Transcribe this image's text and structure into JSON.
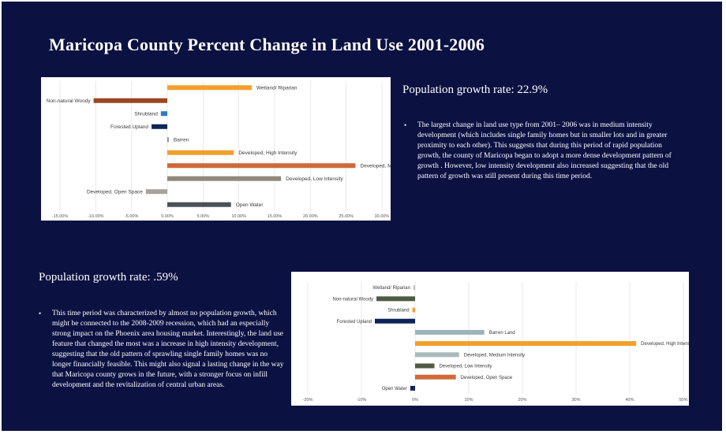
{
  "slide": {
    "title": "Maricopa County Percent Change in Land Use 2001-2006",
    "bg_color": "#0b1141"
  },
  "section1": {
    "growth_label": "Population growth rate: 22.9%",
    "bullet_glyph": "•",
    "bullet": "The largest change in land use type from 2001– 2006 was in medium intensity development (which includes single family homes but in smaller lots and in greater proximity to each other). This suggests that during this period of rapid population growth, the county of Maricopa began to adopt a more dense development pattern of growth . However, low intensity development also increased suggesting that the old pattern of growth  was still present during this time period."
  },
  "section2": {
    "growth_label": "Population growth rate: .59%",
    "bullet_glyph": "•",
    "bullet": "This time period was characterized by almost no population growth, which might be connected to the 2008-2009 recession, which had an especially strong impact on the Phoenix area housing market. Interestingly, the land use feature that changed the most was a increase in high intensity development, suggesting that the old pattern of sprawling single family homes was no longer financially feasible. This might also signal a lasting change in the way that Maricopa county grows in the future,  with a stronger focus on infill development and the revitalization of central urban areas."
  },
  "chart_data": [
    {
      "type": "bar",
      "orientation": "horizontal",
      "title": "",
      "xlabel": "",
      "ylabel": "",
      "xlim": [
        -15,
        30
      ],
      "grid": true,
      "ticks": [
        -15,
        -10,
        -5,
        0,
        5,
        10,
        15,
        20,
        25,
        30
      ],
      "tick_labels": [
        "-15.00%",
        "-10.00%",
        "-5.00%",
        "0.00%",
        "5.00%",
        "10.00%",
        "15.00%",
        "20.00%",
        "25.00%",
        "30.00%"
      ],
      "categories": [
        "Wetland/ Riparian",
        "Non-natural Woody",
        "Shrubland",
        "Forested Upland",
        "Barren",
        "Developed, High Intensity",
        "Developed, Medium Intensity",
        "Developed, Low Intensity",
        "Developed, Open Space",
        "Open Water"
      ],
      "values": [
        11.8,
        -10.3,
        -0.9,
        -2.2,
        0.2,
        9.3,
        26.3,
        15.9,
        -3.0,
        8.9
      ],
      "colors": [
        "#f2a02d",
        "#9c4722",
        "#2f7bbd",
        "#0f2557",
        "#8a8a8a",
        "#f2a02d",
        "#d0693a",
        "#8f8a7c",
        "#a8a39a",
        "#4a5258"
      ]
    },
    {
      "type": "bar",
      "orientation": "horizontal",
      "title": "",
      "xlabel": "",
      "ylabel": "",
      "xlim": [
        -20,
        50
      ],
      "grid": true,
      "ticks": [
        -20,
        -10,
        0,
        10,
        20,
        30,
        40,
        50
      ],
      "tick_labels": [
        "-20%",
        "-10%",
        "0%",
        "10%",
        "20%",
        "30%",
        "40%",
        "50%"
      ],
      "categories": [
        "Wetland/ Riparian",
        "Non-natural Woody",
        "Shrubland",
        "Forested Upland",
        "Barren Land",
        "Developed, High Intensity",
        "Developed, Medium Intensity",
        "Developed, Low Intensity",
        "Developed, Open Space",
        "Open Water"
      ],
      "values": [
        -0.3,
        -7.2,
        -0.5,
        -7.5,
        12.9,
        41.2,
        8.2,
        3.6,
        7.6,
        -0.9
      ],
      "colors": [
        "#bcbcbc",
        "#4f5a42",
        "#f2a02d",
        "#0f2557",
        "#9ab4bb",
        "#f2a02d",
        "#a9babb",
        "#4f5a42",
        "#d0693a",
        "#0f2557"
      ]
    }
  ]
}
